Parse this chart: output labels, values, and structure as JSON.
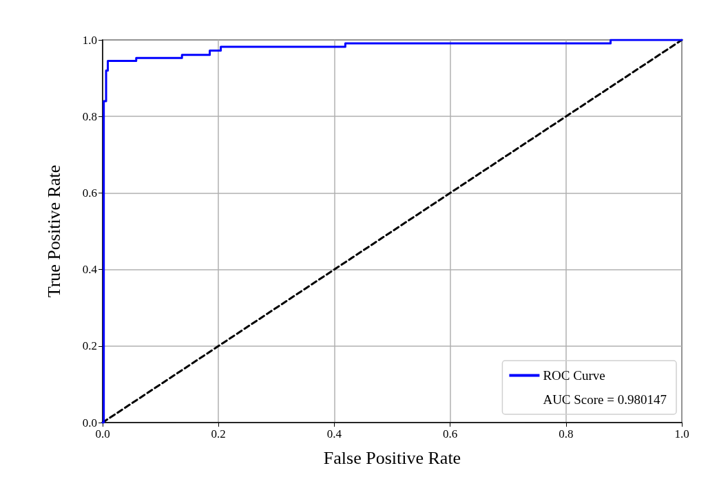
{
  "chart_data": {
    "type": "line",
    "xlabel": "False Positive Rate",
    "ylabel": "True Positive Rate",
    "xlim": [
      0,
      1
    ],
    "ylim": [
      0,
      1
    ],
    "xticks": [
      {
        "value": 0,
        "label": "0.0"
      },
      0.2,
      0.4,
      0.6,
      0.8,
      {
        "value": 1,
        "label": "1.0"
      }
    ],
    "yticks": [
      {
        "value": 0,
        "label": "0.0"
      },
      0.2,
      0.4,
      0.6,
      0.8,
      {
        "value": 1,
        "label": "1.0"
      }
    ],
    "grid": true,
    "legend": "bottom right",
    "marker": "none",
    "annotations": [
      "AUC Score = 0.980147"
    ],
    "series": [
      {
        "name": "ROC Curve",
        "color": "#0000ff",
        "line_style": "solid",
        "x": [
          0,
          0.002,
          0.002,
          0.006,
          0.006,
          0.009,
          0.009,
          0.058,
          0.058,
          0.137,
          0.137,
          0.185,
          0.185,
          0.204,
          0.204,
          0.419,
          0.419,
          0.877,
          0.877,
          1
        ],
        "values": [
          0,
          0,
          0.84,
          0.84,
          0.92,
          0.92,
          0.945,
          0.945,
          0.953,
          0.953,
          0.961,
          0.961,
          0.972,
          0.972,
          0.982,
          0.982,
          0.991,
          0.991,
          1,
          1
        ]
      },
      {
        "color": "#000000",
        "line_style": "dashed",
        "x": [
          0,
          1
        ],
        "values": [
          0,
          1
        ]
      }
    ]
  }
}
